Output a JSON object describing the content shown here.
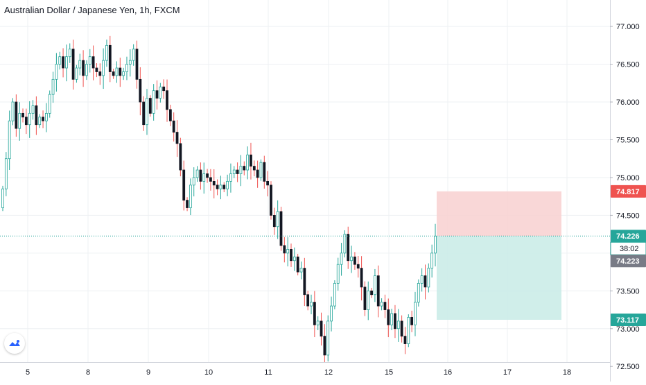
{
  "title": "Australian Dollar / Japanese Yen, 1h, FXCM",
  "colors": {
    "up": "#26a69a",
    "down": "#ef5350",
    "candle_body_up": "#ffffff",
    "candle_body_down": "#131722",
    "price_line": "#26a69a",
    "stop_zone": "#f8d0d0",
    "target_zone": "#c8ebe6",
    "current_price_label": "#26a69a",
    "previous_close_label": "#787b86",
    "stop_label": "#ef5350",
    "target_label": "#26a69a",
    "logo": "#2962ff"
  },
  "icons": {
    "logo": "tradingview-cloud-icon"
  },
  "chart_data": {
    "type": "candlestick",
    "symbol": "Australian Dollar / Japanese Yen",
    "interval": "1h",
    "source": "FXCM",
    "ylim": [
      72.3,
      77.35
    ],
    "y_ticks": [
      "77.000",
      "76.500",
      "76.000",
      "75.500",
      "75.000",
      "74.500",
      "74.000",
      "73.500",
      "73.000",
      "72.500"
    ],
    "x_ticks": [
      "5",
      "8",
      "9",
      "10",
      "11",
      "12",
      "15",
      "16",
      "17",
      "18"
    ],
    "grid": true,
    "closes": [
      74.85,
      75.25,
      75.75,
      76.0,
      75.65,
      75.85,
      75.8,
      75.7,
      75.85,
      75.95,
      75.7,
      75.8,
      75.75,
      75.85,
      76.1,
      76.3,
      76.5,
      76.6,
      76.45,
      76.6,
      76.7,
      76.3,
      76.45,
      76.55,
      76.35,
      76.5,
      76.6,
      76.45,
      76.4,
      76.35,
      76.55,
      76.75,
      76.4,
      76.35,
      76.45,
      76.35,
      76.4,
      76.5,
      76.55,
      76.7,
      76.3,
      76.0,
      75.7,
      76.05,
      75.85,
      76.15,
      76.05,
      76.2,
      76.15,
      75.9,
      75.75,
      75.6,
      75.45,
      75.1,
      74.7,
      74.6,
      74.9,
      75.0,
      75.1,
      74.95,
      75.05,
      75.0,
      74.95,
      74.9,
      74.85,
      74.9,
      74.85,
      74.95,
      75.05,
      75.1,
      75.05,
      75.15,
      75.1,
      75.3,
      75.15,
      75.1,
      75.0,
      75.2,
      74.95,
      74.9,
      74.5,
      74.35,
      74.55,
      74.1,
      74.0,
      74.05,
      73.9,
      73.95,
      73.75,
      73.8,
      73.45,
      73.3,
      73.35,
      73.05,
      73.1,
      72.9,
      72.65,
      73.1,
      73.3,
      73.6,
      73.85,
      74.0,
      74.25,
      73.9,
      73.95,
      73.85,
      73.8,
      73.55,
      73.25,
      73.5,
      73.45,
      73.7,
      73.3,
      73.35,
      73.25,
      73.05,
      73.2,
      73.0,
      73.1,
      72.9,
      72.8,
      73.15,
      73.05,
      73.35,
      73.6,
      73.7,
      73.55,
      73.8,
      74.0,
      74.226
    ],
    "last_price": "74.226",
    "countdown": "38:02",
    "previous_close": "74.223",
    "position": {
      "type": "short",
      "stop_loss": "74.817",
      "entry": "74.226",
      "take_profit": "73.117"
    }
  }
}
